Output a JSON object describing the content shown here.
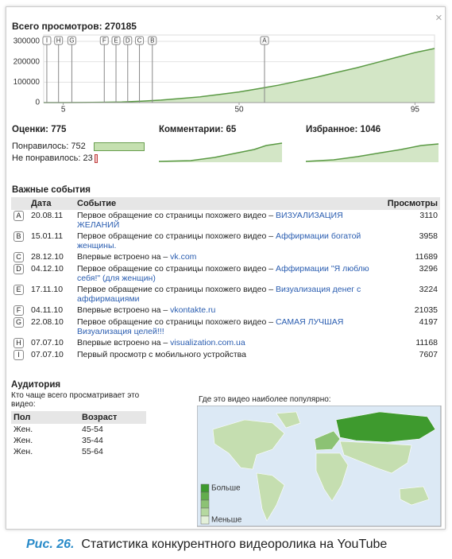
{
  "close": "×",
  "chart_data": {
    "type": "area",
    "title": "Всего просмотров: 270185",
    "x": [
      0,
      5,
      10,
      15,
      20,
      25,
      30,
      35,
      40,
      45,
      50,
      55,
      60,
      65,
      70,
      75,
      80,
      85,
      90,
      95,
      100
    ],
    "values": [
      0,
      0,
      500,
      1500,
      3000,
      7000,
      12000,
      20000,
      28000,
      40000,
      52000,
      68000,
      85000,
      105000,
      125000,
      148000,
      170000,
      195000,
      220000,
      245000,
      265000
    ],
    "color": "#5b9a45",
    "fill": "#d3e6c6",
    "xlim": [
      0,
      100
    ],
    "xticks": [
      5,
      50,
      95
    ],
    "ylim": [
      0,
      300000
    ],
    "yticks": [
      0,
      100000,
      200000,
      300000
    ],
    "grid": true,
    "markers": [
      {
        "label": "I",
        "x": 0.8
      },
      {
        "label": "H",
        "x": 3.8
      },
      {
        "label": "G",
        "x": 7.2
      },
      {
        "label": "F",
        "x": 15.5
      },
      {
        "label": "E",
        "x": 18.5
      },
      {
        "label": "D",
        "x": 21.5
      },
      {
        "label": "C",
        "x": 24.5
      },
      {
        "label": "B",
        "x": 27.8
      },
      {
        "label": "A",
        "x": 56.5
      }
    ]
  },
  "ratings": {
    "title": "Оценки: 775",
    "likes_label": "Понравилось:",
    "likes": 752,
    "dislikes_label": "Не понравилось:",
    "dislikes": 23
  },
  "comments": "Комментарии: 65",
  "favorites": "Избранное: 1046",
  "events": {
    "title": "Важные события",
    "columns": [
      "Дата",
      "Событие",
      "Просмотры"
    ],
    "rows": [
      {
        "letter": "A",
        "date": "20.08.11",
        "text": "Первое обращение со страницы похожего видео –",
        "link": "ВИЗУАЛИЗАЦИЯ ЖЕЛАНИЙ",
        "views": "3110"
      },
      {
        "letter": "B",
        "date": "15.01.11",
        "text": "Первое обращение со страницы похожего видео –",
        "link": "Аффирмации богатой женщины.",
        "views": "3958"
      },
      {
        "letter": "C",
        "date": "28.12.10",
        "text": "Впервые встроено на –",
        "link": "vk.com",
        "views": "11689"
      },
      {
        "letter": "D",
        "date": "04.12.10",
        "text": "Первое обращение со страницы похожего видео –",
        "link": "Аффирмации \"Я люблю себя!\" (для женщин)",
        "views": "3296"
      },
      {
        "letter": "E",
        "date": "17.11.10",
        "text": "Первое обращение со страницы похожего видео –",
        "link": "Визуализация денег с аффирмациями",
        "views": "3224"
      },
      {
        "letter": "F",
        "date": "04.11.10",
        "text": "Впервые встроено на –",
        "link": "vkontakte.ru",
        "views": "21035"
      },
      {
        "letter": "G",
        "date": "22.08.10",
        "text": "Первое обращение со страницы похожего видео –",
        "link": "САМАЯ ЛУЧШАЯ Визуализация целей!!!",
        "views": "4197"
      },
      {
        "letter": "H",
        "date": "07.07.10",
        "text": "Впервые встроено на –",
        "link": "visualization.com.ua",
        "views": "11168"
      },
      {
        "letter": "I",
        "date": "07.07.10",
        "text": "Первый просмотр с мобильного устройства",
        "views": "7607"
      }
    ]
  },
  "audience": {
    "title": "Аудитория",
    "subtitle": "Кто чаще всего просматривает это видео:",
    "columns": [
      "Пол",
      "Возраст"
    ],
    "rows": [
      [
        "Жен.",
        "45-54"
      ],
      [
        "Жен.",
        "35-44"
      ],
      [
        "Жен.",
        "55-64"
      ]
    ]
  },
  "map": {
    "title": "Где это видео наиболее популярно:",
    "legend_high": "Больше",
    "legend_low": "Меньше"
  },
  "caption": {
    "figure": "Рис. 26.",
    "text": "Статистика конкурентного видеоролика на YouTube"
  }
}
